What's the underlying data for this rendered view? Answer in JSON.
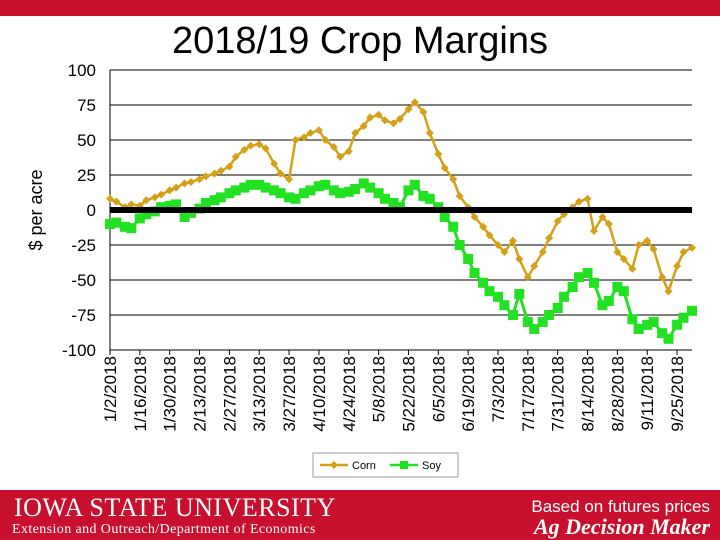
{
  "title": "2018/19 Crop Margins",
  "footer": {
    "university": "IOWA STATE UNIVERSITY",
    "department": "Extension and Outreach/Department of Economics",
    "note": "Based on futures prices",
    "brand": "Ag Decision Maker"
  },
  "colors": {
    "corn": "#d4a017",
    "soy": "#22e022",
    "zero_line": "#000000",
    "brand_red": "#c8102e"
  },
  "chart_data": {
    "type": "line",
    "title": "2018/19 Crop Margins",
    "ylabel": "$ per acre",
    "xlabel": "",
    "ylim": [
      -100,
      100
    ],
    "yticks": [
      100,
      75,
      50,
      25,
      0,
      -25,
      -50,
      -75,
      -100
    ],
    "grid": true,
    "legend": "bottom",
    "xtick_labels": [
      "1/2/2018",
      "1/16/2018",
      "1/30/2018",
      "2/13/2018",
      "2/27/2018",
      "3/13/2018",
      "3/27/2018",
      "4/10/2018",
      "4/24/2018",
      "5/8/2018",
      "5/22/2018",
      "6/5/2018",
      "6/19/2018",
      "7/3/2018",
      "7/17/2018",
      "7/31/2018",
      "8/14/2018",
      "8/28/2018",
      "9/11/2018",
      "9/25/2018"
    ],
    "x_range": [
      "1/2/2018",
      "10/2/2018"
    ],
    "series": [
      {
        "name": "Corn",
        "x": [
          "1/2/2018",
          "1/5/2018",
          "1/9/2018",
          "1/12/2018",
          "1/16/2018",
          "1/19/2018",
          "1/23/2018",
          "1/26/2018",
          "1/30/2018",
          "2/2/2018",
          "2/6/2018",
          "2/9/2018",
          "2/13/2018",
          "2/16/2018",
          "2/20/2018",
          "2/23/2018",
          "2/27/2018",
          "3/2/2018",
          "3/6/2018",
          "3/9/2018",
          "3/13/2018",
          "3/16/2018",
          "3/20/2018",
          "3/23/2018",
          "3/27/2018",
          "3/30/2018",
          "4/3/2018",
          "4/6/2018",
          "4/10/2018",
          "4/13/2018",
          "4/17/2018",
          "4/20/2018",
          "4/24/2018",
          "4/27/2018",
          "5/1/2018",
          "5/4/2018",
          "5/8/2018",
          "5/11/2018",
          "5/15/2018",
          "5/18/2018",
          "5/22/2018",
          "5/25/2018",
          "5/29/2018",
          "6/1/2018",
          "6/5/2018",
          "6/8/2018",
          "6/12/2018",
          "6/15/2018",
          "6/19/2018",
          "6/22/2018",
          "6/26/2018",
          "6/29/2018",
          "7/3/2018",
          "7/6/2018",
          "7/10/2018",
          "7/13/2018",
          "7/17/2018",
          "7/20/2018",
          "7/24/2018",
          "7/27/2018",
          "7/31/2018",
          "8/3/2018",
          "8/7/2018",
          "8/10/2018",
          "8/14/2018",
          "8/17/2018",
          "8/21/2018",
          "8/24/2018",
          "8/28/2018",
          "8/31/2018",
          "9/4/2018",
          "9/7/2018",
          "9/11/2018",
          "9/14/2018",
          "9/18/2018",
          "9/21/2018",
          "9/25/2018",
          "9/28/2018",
          "10/2/2018"
        ],
        "values": [
          8,
          6,
          2,
          4,
          3,
          7,
          9,
          11,
          14,
          16,
          19,
          20,
          22,
          24,
          26,
          28,
          31,
          38,
          43,
          46,
          47,
          44,
          33,
          26,
          22,
          50,
          52,
          55,
          57,
          50,
          45,
          38,
          42,
          55,
          60,
          66,
          68,
          64,
          62,
          65,
          72,
          77,
          70,
          55,
          40,
          30,
          22,
          10,
          2,
          -5,
          -12,
          -18,
          -25,
          -30,
          -22,
          -35,
          -48,
          -40,
          -30,
          -20,
          -8,
          -3,
          2,
          6,
          8,
          -15,
          -5,
          -10,
          -30,
          -35,
          -42,
          -25,
          -22,
          -28,
          -48,
          -58,
          -40,
          -30,
          -27
        ]
      },
      {
        "name": "Soy",
        "x": [
          "1/2/2018",
          "1/5/2018",
          "1/9/2018",
          "1/12/2018",
          "1/16/2018",
          "1/19/2018",
          "1/23/2018",
          "1/26/2018",
          "1/30/2018",
          "2/2/2018",
          "2/6/2018",
          "2/9/2018",
          "2/13/2018",
          "2/16/2018",
          "2/20/2018",
          "2/23/2018",
          "2/27/2018",
          "3/2/2018",
          "3/6/2018",
          "3/9/2018",
          "3/13/2018",
          "3/16/2018",
          "3/20/2018",
          "3/23/2018",
          "3/27/2018",
          "3/30/2018",
          "4/3/2018",
          "4/6/2018",
          "4/10/2018",
          "4/13/2018",
          "4/17/2018",
          "4/20/2018",
          "4/24/2018",
          "4/27/2018",
          "5/1/2018",
          "5/4/2018",
          "5/8/2018",
          "5/11/2018",
          "5/15/2018",
          "5/18/2018",
          "5/22/2018",
          "5/25/2018",
          "5/29/2018",
          "6/1/2018",
          "6/5/2018",
          "6/8/2018",
          "6/12/2018",
          "6/15/2018",
          "6/19/2018",
          "6/22/2018",
          "6/26/2018",
          "6/29/2018",
          "7/3/2018",
          "7/6/2018",
          "7/10/2018",
          "7/13/2018",
          "7/17/2018",
          "7/20/2018",
          "7/24/2018",
          "7/27/2018",
          "7/31/2018",
          "8/3/2018",
          "8/7/2018",
          "8/10/2018",
          "8/14/2018",
          "8/17/2018",
          "8/21/2018",
          "8/24/2018",
          "8/28/2018",
          "8/31/2018",
          "9/4/2018",
          "9/7/2018",
          "9/11/2018",
          "9/14/2018",
          "9/18/2018",
          "9/21/2018",
          "9/25/2018",
          "9/28/2018",
          "10/2/2018"
        ],
        "values": [
          -10,
          -9,
          -12,
          -13,
          -6,
          -3,
          -1,
          2,
          3,
          4,
          -5,
          -2,
          1,
          5,
          7,
          9,
          12,
          14,
          16,
          18,
          18,
          16,
          14,
          12,
          9,
          8,
          12,
          14,
          17,
          18,
          14,
          12,
          13,
          15,
          19,
          16,
          12,
          8,
          5,
          2,
          14,
          18,
          10,
          8,
          2,
          -5,
          -12,
          -25,
          -35,
          -45,
          -52,
          -58,
          -62,
          -68,
          -75,
          -60,
          -80,
          -85,
          -80,
          -75,
          -70,
          -62,
          -55,
          -48,
          -45,
          -52,
          -68,
          -65,
          -55,
          -58,
          -78,
          -85,
          -82,
          -80,
          -88,
          -92,
          -82,
          -77,
          -72
        ]
      }
    ]
  }
}
